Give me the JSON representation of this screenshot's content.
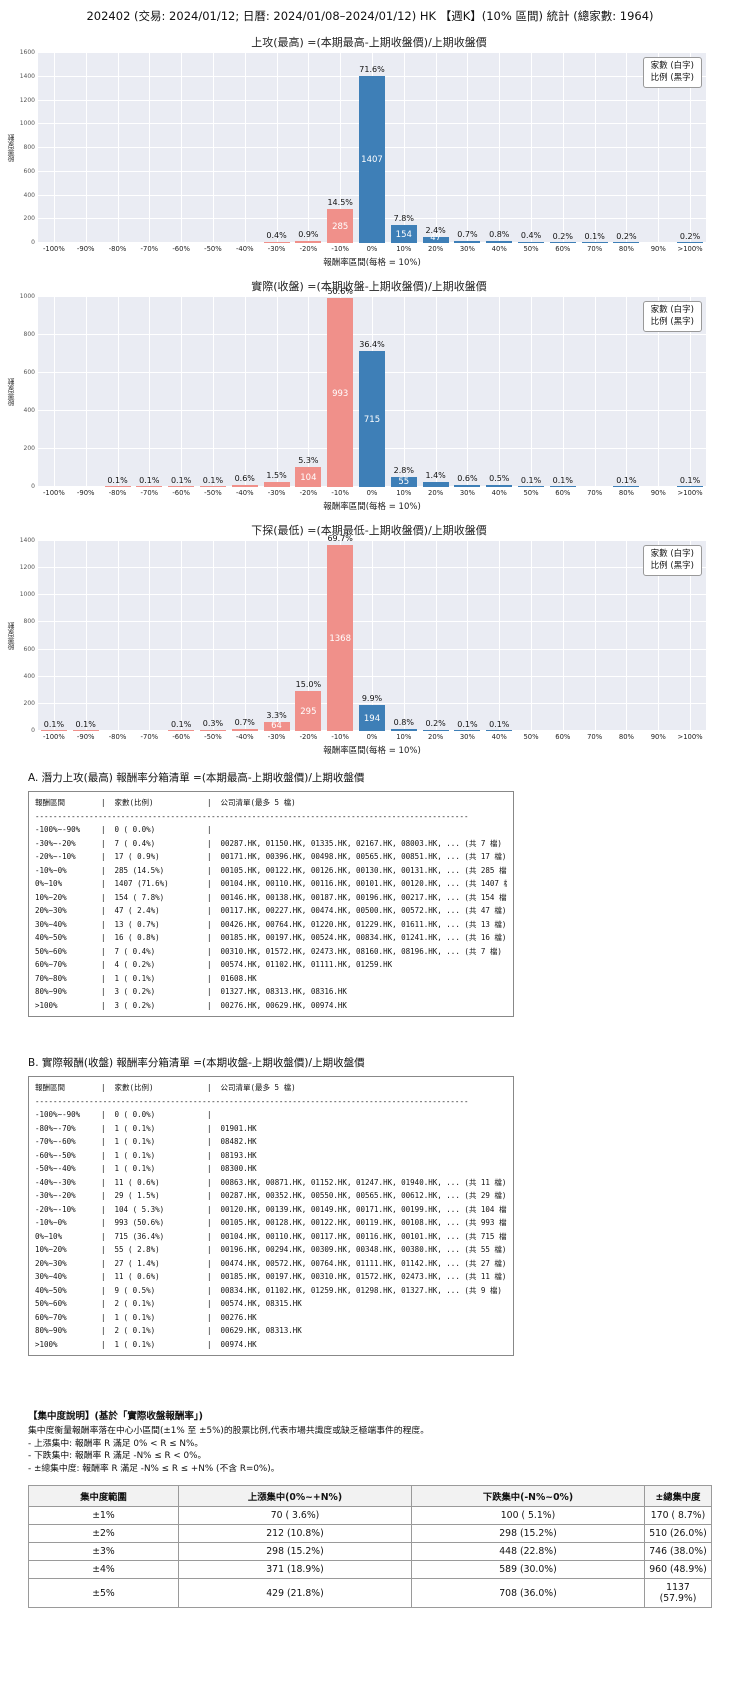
{
  "page_title": "202402 (交易: 2024/01/12; 日曆: 2024/01/08–2024/01/12) HK 【週K】(10% 區間) 統計 (總家數: 1964)",
  "total_count": 1964,
  "legend": {
    "line1": "家數 (白字)",
    "line2": "比例 (黑字)"
  },
  "colors": {
    "neg_bar": "#f0908a",
    "pos_bar": "#3e7fb7",
    "plot_bg": "#eaecf3",
    "grid": "#ffffff"
  },
  "chart_data": [
    {
      "type": "bar",
      "title": "上攻(最高) =(本期最高-上期收盤價)/上期收盤價",
      "xlabel": "報酬率區間(每格 = 10%)",
      "ylabel": "股票家數",
      "ylim": [
        0,
        1600
      ],
      "ytick_step": 200,
      "grid": true,
      "legend_position": "top-right",
      "categories": [
        "-100%",
        "-90%",
        "-80%",
        "-70%",
        "-60%",
        "-50%",
        "-40%",
        "-30%",
        "-20%",
        "-10%",
        "0%",
        "10%",
        "20%",
        "30%",
        "40%",
        "50%",
        "60%",
        "70%",
        "80%",
        "90%",
        ">100%"
      ],
      "values": [
        0,
        0,
        0,
        0,
        0,
        0,
        0,
        7,
        17,
        285,
        1407,
        154,
        47,
        13,
        16,
        7,
        4,
        1,
        3,
        0,
        3
      ],
      "pct_labels": [
        "",
        "",
        "",
        "",
        "",
        "",
        "",
        "0.4%",
        "0.9%",
        "14.5%",
        "71.6%",
        "7.8%",
        "2.4%",
        "0.7%",
        "0.8%",
        "0.4%",
        "0.2%",
        "0.1%",
        "0.2%",
        "",
        "0.2%"
      ],
      "count_labels": [
        "",
        "",
        "",
        "",
        "",
        "",
        "",
        "",
        "",
        "285",
        "1407",
        "154",
        "47",
        "",
        "",
        "",
        "",
        "",
        "",
        "",
        ""
      ]
    },
    {
      "type": "bar",
      "title": "實際(收盤) =(本期收盤-上期收盤價)/上期收盤價",
      "xlabel": "報酬率區間(每格 = 10%)",
      "ylabel": "股票家數",
      "ylim": [
        0,
        1000
      ],
      "ytick_step": 200,
      "grid": true,
      "legend_position": "top-right",
      "categories": [
        "-100%",
        "-90%",
        "-80%",
        "-70%",
        "-60%",
        "-50%",
        "-40%",
        "-30%",
        "-20%",
        "-10%",
        "0%",
        "10%",
        "20%",
        "30%",
        "40%",
        "50%",
        "60%",
        "70%",
        "80%",
        "90%",
        ">100%"
      ],
      "values": [
        0,
        0,
        1,
        1,
        1,
        1,
        11,
        29,
        104,
        993,
        715,
        55,
        27,
        11,
        9,
        2,
        1,
        0,
        2,
        0,
        1
      ],
      "pct_labels": [
        "",
        "",
        "0.1%",
        "0.1%",
        "0.1%",
        "0.1%",
        "0.6%",
        "1.5%",
        "5.3%",
        "50.6%",
        "36.4%",
        "2.8%",
        "1.4%",
        "0.6%",
        "0.5%",
        "0.1%",
        "0.1%",
        "",
        "0.1%",
        "",
        "0.1%"
      ],
      "count_labels": [
        "",
        "",
        "",
        "",
        "",
        "",
        "",
        "",
        "104",
        "993",
        "715",
        "55",
        "",
        "",
        "",
        "",
        "",
        "",
        "",
        "",
        ""
      ]
    },
    {
      "type": "bar",
      "title": "下探(最低) =(本期最低-上期收盤價)/上期收盤價",
      "xlabel": "報酬率區間(每格 = 10%)",
      "ylabel": "股票家數",
      "ylim": [
        0,
        1400
      ],
      "ytick_step": 200,
      "grid": true,
      "legend_position": "top-right",
      "categories": [
        "-100%",
        "-90%",
        "-80%",
        "-70%",
        "-60%",
        "-50%",
        "-40%",
        "-30%",
        "-20%",
        "-10%",
        "0%",
        "10%",
        "20%",
        "30%",
        "40%",
        "50%",
        "60%",
        "70%",
        "80%",
        "90%",
        ">100%"
      ],
      "values": [
        2,
        2,
        0,
        0,
        2,
        6,
        14,
        64,
        295,
        1368,
        194,
        16,
        4,
        2,
        2,
        0,
        0,
        0,
        0,
        0,
        0
      ],
      "pct_labels": [
        "0.1%",
        "0.1%",
        "",
        "",
        "0.1%",
        "0.3%",
        "0.7%",
        "3.3%",
        "15.0%",
        "69.7%",
        "9.9%",
        "0.8%",
        "0.2%",
        "0.1%",
        "0.1%",
        "",
        "",
        "",
        "",
        "",
        ""
      ],
      "count_labels": [
        "",
        "",
        "",
        "",
        "",
        "",
        "",
        "64",
        "295",
        "1368",
        "194",
        "",
        "",
        "",
        "",
        "",
        "",
        "",
        "",
        "",
        ""
      ]
    }
  ],
  "list_a": {
    "heading": "A. 潛力上攻(最高) 報酬率分箱清單 =(本期最高-上期收盤價)/上期收盤價",
    "col_headers": [
      "報酬區間",
      "家數(比例)",
      "公司清單(最多 5 檔)"
    ],
    "rows": [
      [
        "-100%~-90%",
        "0 ( 0.0%)",
        ""
      ],
      [
        "-30%~-20%",
        "7 ( 0.4%)",
        "00287.HK, 01150.HK, 01335.HK, 02167.HK, 08003.HK, ... (共 7 檔)"
      ],
      [
        "-20%~-10%",
        "17 ( 0.9%)",
        "00171.HK, 00396.HK, 00498.HK, 00565.HK, 00851.HK, ... (共 17 檔)"
      ],
      [
        "-10%~0%",
        "285 (14.5%)",
        "00105.HK, 00122.HK, 00126.HK, 00130.HK, 00131.HK, ... (共 285 檔)"
      ],
      [
        "0%~10%",
        "1407 (71.6%)",
        "00104.HK, 00110.HK, 00116.HK, 00101.HK, 00120.HK, ... (共 1407 檔)"
      ],
      [
        "10%~20%",
        "154 ( 7.8%)",
        "00146.HK, 00138.HK, 00187.HK, 00196.HK, 00217.HK, ... (共 154 檔)"
      ],
      [
        "20%~30%",
        "47 ( 2.4%)",
        "00117.HK, 00227.HK, 00474.HK, 00500.HK, 00572.HK, ... (共 47 檔)"
      ],
      [
        "30%~40%",
        "13 ( 0.7%)",
        "00426.HK, 00764.HK, 01220.HK, 01229.HK, 01611.HK, ... (共 13 檔)"
      ],
      [
        "40%~50%",
        "16 ( 0.8%)",
        "00185.HK, 00197.HK, 00524.HK, 00834.HK, 01241.HK, ... (共 16 檔)"
      ],
      [
        "50%~60%",
        "7 ( 0.4%)",
        "00310.HK, 01572.HK, 02473.HK, 08160.HK, 08196.HK, ... (共 7 檔)"
      ],
      [
        "60%~70%",
        "4 ( 0.2%)",
        "00574.HK, 01102.HK, 01111.HK, 01259.HK"
      ],
      [
        "70%~80%",
        "1 ( 0.1%)",
        "01608.HK"
      ],
      [
        "80%~90%",
        "3 ( 0.2%)",
        "01327.HK, 08313.HK, 08316.HK"
      ],
      [
        ">100%",
        "3 ( 0.2%)",
        "00276.HK, 00629.HK, 00974.HK"
      ]
    ]
  },
  "list_b": {
    "heading": "B. 實際報酬(收盤) 報酬率分箱清單 =(本期收盤-上期收盤價)/上期收盤價",
    "col_headers": [
      "報酬區間",
      "家數(比例)",
      "公司清單(最多 5 檔)"
    ],
    "rows": [
      [
        "-100%~-90%",
        "0 ( 0.0%)",
        ""
      ],
      [
        "-80%~-70%",
        "1 ( 0.1%)",
        "01901.HK"
      ],
      [
        "-70%~-60%",
        "1 ( 0.1%)",
        "08482.HK"
      ],
      [
        "-60%~-50%",
        "1 ( 0.1%)",
        "08193.HK"
      ],
      [
        "-50%~-40%",
        "1 ( 0.1%)",
        "08300.HK"
      ],
      [
        "-40%~-30%",
        "11 ( 0.6%)",
        "00863.HK, 00871.HK, 01152.HK, 01247.HK, 01940.HK, ... (共 11 檔)"
      ],
      [
        "-30%~-20%",
        "29 ( 1.5%)",
        "00287.HK, 00352.HK, 00550.HK, 00565.HK, 00612.HK, ... (共 29 檔)"
      ],
      [
        "-20%~-10%",
        "104 ( 5.3%)",
        "00120.HK, 00139.HK, 00149.HK, 00171.HK, 00199.HK, ... (共 104 檔)"
      ],
      [
        "-10%~0%",
        "993 (50.6%)",
        "00105.HK, 00128.HK, 00122.HK, 00119.HK, 00108.HK, ... (共 993 檔)"
      ],
      [
        "0%~10%",
        "715 (36.4%)",
        "00104.HK, 00110.HK, 00117.HK, 00116.HK, 00101.HK, ... (共 715 檔)"
      ],
      [
        "10%~20%",
        "55 ( 2.8%)",
        "00196.HK, 00294.HK, 00309.HK, 00348.HK, 00380.HK, ... (共 55 檔)"
      ],
      [
        "20%~30%",
        "27 ( 1.4%)",
        "00474.HK, 00572.HK, 00764.HK, 01111.HK, 01142.HK, ... (共 27 檔)"
      ],
      [
        "30%~40%",
        "11 ( 0.6%)",
        "00185.HK, 00197.HK, 00310.HK, 01572.HK, 02473.HK, ... (共 11 檔)"
      ],
      [
        "40%~50%",
        "9 ( 0.5%)",
        "00834.HK, 01102.HK, 01259.HK, 01298.HK, 01327.HK, ... (共 9 檔)"
      ],
      [
        "50%~60%",
        "2 ( 0.1%)",
        "00574.HK, 08315.HK"
      ],
      [
        "60%~70%",
        "1 ( 0.1%)",
        "00276.HK"
      ],
      [
        "80%~90%",
        "2 ( 0.1%)",
        "00629.HK, 08313.HK"
      ],
      [
        ">100%",
        "1 ( 0.1%)",
        "00974.HK"
      ]
    ]
  },
  "concentration": {
    "title": "【集中度說明】(基於「實際收盤報酬率」)",
    "note_lines": [
      "集中度衡量報酬率落在中心小區間(±1% 至 ±5%)的股票比例,代表市場共識度或缺乏極端事件的程度。",
      " - 上漲集中: 報酬率 R 滿足 0% < R ≤ N%。",
      " - 下跌集中: 報酬率 R 滿足 -N% ≤ R < 0%。",
      " - ±總集中度: 報酬率 R 滿足 -N% ≤ R ≤ +N% (不含 R=0%)。"
    ],
    "table": {
      "headers": [
        "集中度範圍",
        "上漲集中(0%~+N%)",
        "下跌集中(-N%~0%)",
        "±總集中度"
      ],
      "rows": [
        [
          "±1%",
          "70 ( 3.6%)",
          "100 ( 5.1%)",
          "170 ( 8.7%)"
        ],
        [
          "±2%",
          "212 (10.8%)",
          "298 (15.2%)",
          "510 (26.0%)"
        ],
        [
          "±3%",
          "298 (15.2%)",
          "448 (22.8%)",
          "746 (38.0%)"
        ],
        [
          "±4%",
          "371 (18.9%)",
          "589 (30.0%)",
          "960 (48.9%)"
        ],
        [
          "±5%",
          "429 (21.8%)",
          "708 (36.0%)",
          "1137 (57.9%)"
        ]
      ]
    }
  }
}
